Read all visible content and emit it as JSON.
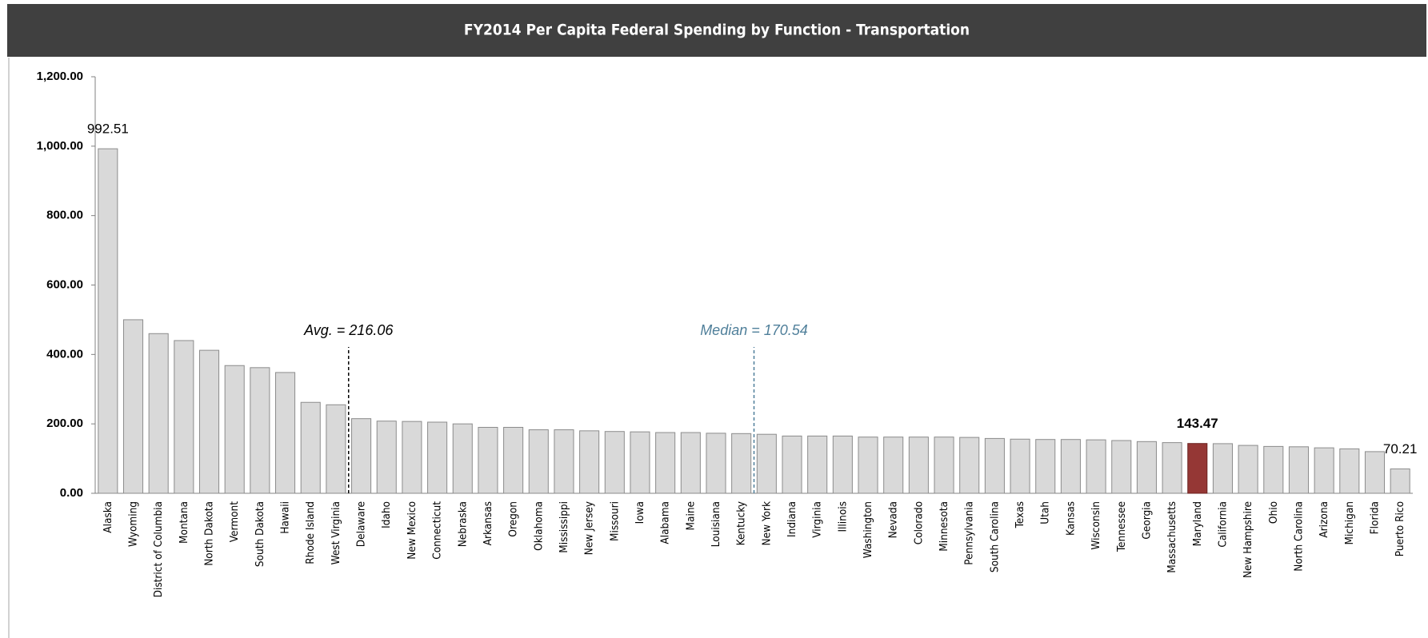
{
  "chart_data": {
    "type": "bar",
    "title": "FY2014 Per Capita Federal Spending by Function - Transportation",
    "categories": [
      "Alaska",
      "Wyoming",
      "District of Columbia",
      "Montana",
      "North Dakota",
      "Vermont",
      "South Dakota",
      "Hawaii",
      "Rhode Island",
      "West Virginia",
      "Delaware",
      "Idaho",
      "New Mexico",
      "Connecticut",
      "Nebraska",
      "Arkansas",
      "Oregon",
      "Oklahoma",
      "Mississippi",
      "New Jersey",
      "Missouri",
      "Iowa",
      "Alabama",
      "Maine",
      "Louisiana",
      "Kentucky",
      "New York",
      "Indiana",
      "Virginia",
      "Illinois",
      "Washington",
      "Nevada",
      "Colorado",
      "Minnesota",
      "Pennsylvania",
      "South Carolina",
      "Texas",
      "Utah",
      "Kansas",
      "Wisconsin",
      "Tennessee",
      "Georgia",
      "Massachusetts",
      "Maryland",
      "California",
      "New Hampshire",
      "Ohio",
      "North Carolina",
      "Arizona",
      "Michigan",
      "Florida",
      "Puerto Rico"
    ],
    "values": [
      992.51,
      500,
      460,
      440,
      412,
      368,
      362,
      348,
      262,
      255,
      215,
      208,
      207,
      205,
      200,
      190,
      190,
      183,
      183,
      180,
      178,
      177,
      175,
      175,
      173,
      172,
      170,
      165,
      165,
      165,
      162,
      162,
      162,
      162,
      161,
      158,
      156,
      155,
      155,
      154,
      152,
      149,
      146,
      143.47,
      143,
      138,
      135,
      134,
      131,
      128,
      120,
      70.21
    ],
    "value_labels": [
      "992.51",
      null,
      null,
      null,
      null,
      null,
      null,
      null,
      null,
      null,
      null,
      null,
      null,
      null,
      null,
      null,
      null,
      null,
      null,
      null,
      null,
      null,
      null,
      null,
      null,
      null,
      null,
      null,
      null,
      null,
      null,
      null,
      null,
      null,
      null,
      null,
      null,
      null,
      null,
      null,
      null,
      null,
      null,
      "143.47",
      null,
      null,
      null,
      null,
      null,
      null,
      null,
      "70.21"
    ],
    "color": "#d9d9d9",
    "highlight_category": "Maryland",
    "highlight_color": "#953735",
    "ylim": [
      0,
      1200
    ],
    "yticks": [
      {
        "value": 0,
        "label": "0.00"
      },
      {
        "value": 200,
        "label": "200.00"
      },
      {
        "value": 400,
        "label": "400.00"
      },
      {
        "value": 600,
        "label": "600.00"
      },
      {
        "value": 800,
        "label": "800.00"
      },
      {
        "value": 1000,
        "label": "1,000.00"
      },
      {
        "value": 1200,
        "label": "1,200.00"
      }
    ],
    "reference_lines": [
      {
        "label": "Avg. = 216.06",
        "value": 216.06,
        "after": "West Virginia",
        "color": "#000000"
      },
      {
        "label": "Median = 170.54",
        "value": 170.54,
        "after": "Kentucky",
        "color": "#4f7f9a"
      }
    ]
  }
}
